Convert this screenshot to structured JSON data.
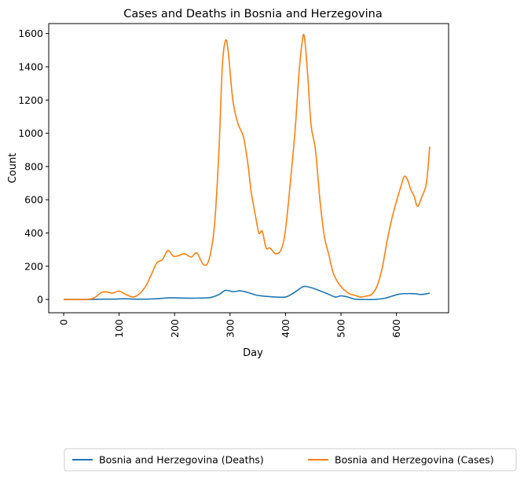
{
  "chart_data": {
    "type": "line",
    "title": "Cases and Deaths in Bosnia and Herzegovina",
    "xlabel": "Day",
    "ylabel": "Count",
    "xlim": [
      -27,
      694
    ],
    "ylim": [
      -80,
      1660
    ],
    "x_ticks": [
      0,
      100,
      200,
      300,
      400,
      500,
      600
    ],
    "y_ticks": [
      0,
      200,
      400,
      600,
      800,
      1000,
      1200,
      1400,
      1600
    ],
    "grid": false,
    "legend_placement": "bottom-center",
    "series": [
      {
        "name": "Bosnia and Herzegovina (Deaths)",
        "color": "#1f77b4",
        "points": [
          [
            0,
            0
          ],
          [
            50,
            0
          ],
          [
            70,
            2
          ],
          [
            90,
            2
          ],
          [
            110,
            4
          ],
          [
            130,
            2
          ],
          [
            150,
            2
          ],
          [
            170,
            5
          ],
          [
            190,
            10
          ],
          [
            210,
            9
          ],
          [
            230,
            8
          ],
          [
            250,
            9
          ],
          [
            265,
            12
          ],
          [
            280,
            30
          ],
          [
            292,
            55
          ],
          [
            305,
            47
          ],
          [
            318,
            52
          ],
          [
            330,
            44
          ],
          [
            345,
            28
          ],
          [
            360,
            20
          ],
          [
            380,
            15
          ],
          [
            400,
            15
          ],
          [
            415,
            40
          ],
          [
            432,
            77
          ],
          [
            445,
            72
          ],
          [
            460,
            55
          ],
          [
            475,
            35
          ],
          [
            490,
            15
          ],
          [
            500,
            22
          ],
          [
            512,
            15
          ],
          [
            525,
            2
          ],
          [
            540,
            0
          ],
          [
            560,
            0
          ],
          [
            580,
            8
          ],
          [
            605,
            32
          ],
          [
            630,
            35
          ],
          [
            645,
            30
          ],
          [
            660,
            38
          ]
        ]
      },
      {
        "name": "Bosnia and Herzegovina (Cases)",
        "color": "#ff7f0e",
        "points": [
          [
            0,
            0
          ],
          [
            40,
            0
          ],
          [
            55,
            10
          ],
          [
            68,
            42
          ],
          [
            78,
            45
          ],
          [
            88,
            38
          ],
          [
            100,
            50
          ],
          [
            112,
            30
          ],
          [
            125,
            15
          ],
          [
            135,
            30
          ],
          [
            148,
            80
          ],
          [
            158,
            150
          ],
          [
            168,
            220
          ],
          [
            178,
            240
          ],
          [
            188,
            295
          ],
          [
            198,
            260
          ],
          [
            208,
            265
          ],
          [
            218,
            275
          ],
          [
            230,
            255
          ],
          [
            240,
            280
          ],
          [
            252,
            210
          ],
          [
            262,
            240
          ],
          [
            272,
            450
          ],
          [
            280,
            900
          ],
          [
            286,
            1400
          ],
          [
            292,
            1560
          ],
          [
            297,
            1480
          ],
          [
            305,
            1200
          ],
          [
            314,
            1060
          ],
          [
            324,
            980
          ],
          [
            332,
            820
          ],
          [
            338,
            650
          ],
          [
            346,
            500
          ],
          [
            352,
            400
          ],
          [
            358,
            410
          ],
          [
            365,
            310
          ],
          [
            372,
            310
          ],
          [
            382,
            275
          ],
          [
            392,
            300
          ],
          [
            400,
            420
          ],
          [
            410,
            750
          ],
          [
            418,
            1050
          ],
          [
            424,
            1350
          ],
          [
            430,
            1550
          ],
          [
            434,
            1580
          ],
          [
            440,
            1350
          ],
          [
            446,
            1050
          ],
          [
            454,
            900
          ],
          [
            462,
            600
          ],
          [
            470,
            380
          ],
          [
            478,
            270
          ],
          [
            486,
            160
          ],
          [
            495,
            100
          ],
          [
            505,
            60
          ],
          [
            515,
            35
          ],
          [
            525,
            25
          ],
          [
            535,
            15
          ],
          [
            545,
            20
          ],
          [
            555,
            30
          ],
          [
            565,
            80
          ],
          [
            575,
            200
          ],
          [
            583,
            350
          ],
          [
            592,
            490
          ],
          [
            600,
            590
          ],
          [
            608,
            680
          ],
          [
            614,
            740
          ],
          [
            620,
            720
          ],
          [
            626,
            660
          ],
          [
            632,
            620
          ],
          [
            638,
            560
          ],
          [
            646,
            620
          ],
          [
            654,
            700
          ],
          [
            660,
            920
          ]
        ]
      }
    ]
  }
}
